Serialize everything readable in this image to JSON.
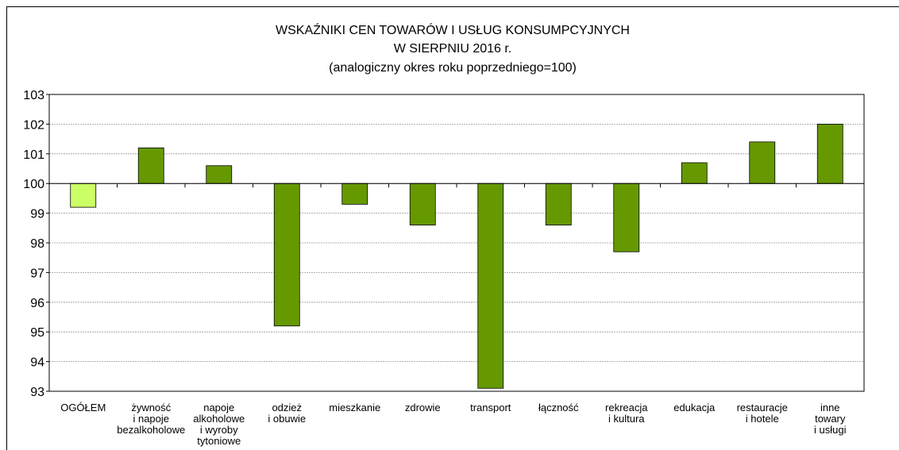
{
  "chart_data": {
    "type": "bar",
    "title": [
      "WSKAŹNIKI CEN TOWARÓW I USŁUG KONSUMPCYJNYCH",
      "W SIERPNIU 2016 r.",
      "(analogiczny okres roku poprzedniego=100)"
    ],
    "categories": [
      "OGÓŁEM",
      "żywność\ni napoje\nbezalkoholowe",
      "napoje\nalkoholowe\ni wyroby\ntytoniowe",
      "odzież\ni obuwie",
      "mieszkanie",
      "zdrowie",
      "transport",
      "łączność",
      "rekreacja\ni kultura",
      "edukacja",
      "restauracje\ni hotele",
      "inne\ntowary\ni usługi"
    ],
    "values": [
      99.2,
      101.2,
      100.6,
      95.2,
      99.3,
      98.6,
      93.1,
      98.6,
      97.7,
      100.7,
      101.4,
      102.0
    ],
    "colors": [
      "#ccff66",
      "#669900",
      "#669900",
      "#669900",
      "#669900",
      "#669900",
      "#669900",
      "#669900",
      "#669900",
      "#669900",
      "#669900",
      "#669900"
    ],
    "baseline": 100,
    "ylim": [
      93,
      103
    ],
    "yticks": [
      93,
      94,
      95,
      96,
      97,
      98,
      99,
      100,
      101,
      102,
      103
    ],
    "grid": true
  }
}
